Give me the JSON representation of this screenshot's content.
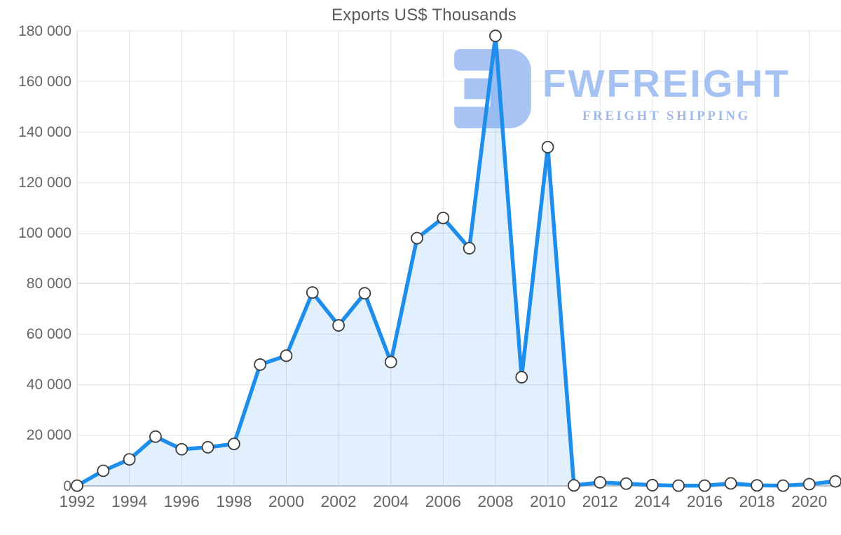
{
  "page": {
    "background": "#ffffff"
  },
  "chart_data": {
    "type": "area",
    "title": "Exports US$ Thousands",
    "x": [
      1992,
      1993,
      1994,
      1995,
      1996,
      1997,
      1998,
      1999,
      2000,
      2001,
      2002,
      2003,
      2004,
      2005,
      2006,
      2007,
      2008,
      2009,
      2010,
      2011,
      2012,
      2013,
      2014,
      2015,
      2016,
      2017,
      2018,
      2019,
      2020,
      2021
    ],
    "values": [
      100,
      6000,
      10500,
      19500,
      14500,
      15300,
      16600,
      48000,
      51500,
      76500,
      63500,
      76200,
      49000,
      98000,
      106000,
      94000,
      178000,
      43000,
      134000,
      200,
      1400,
      900,
      300,
      100,
      100,
      1000,
      200,
      100,
      700,
      1800
    ],
    "xlabel": "",
    "ylabel": "",
    "ylim": [
      0,
      180000
    ],
    "y_tick_step": 20000,
    "y_tick_labels": [
      "0",
      "20 000",
      "40 000",
      "60 000",
      "80 000",
      "100 000",
      "120 000",
      "140 000",
      "160 000",
      "180 000"
    ],
    "x_tick_labels": [
      "1992",
      "1994",
      "1996",
      "1998",
      "2000",
      "2002",
      "2004",
      "2006",
      "2008",
      "2010",
      "2012",
      "2014",
      "2016",
      "2018",
      "2020"
    ],
    "grid": true,
    "legend": "none",
    "line_color": "#1e8eec",
    "fill_color": "rgba(30,142,236,0.13)",
    "marker_fill": "#ffffff",
    "marker_stroke": "#3c3c3c"
  },
  "watermark": {
    "brand": "FWFREIGHT",
    "tagline": "FREIGHT SHIPPING",
    "logo_icon": "fwfreight-3d-logo-icon",
    "color": "#a9c4f3"
  }
}
